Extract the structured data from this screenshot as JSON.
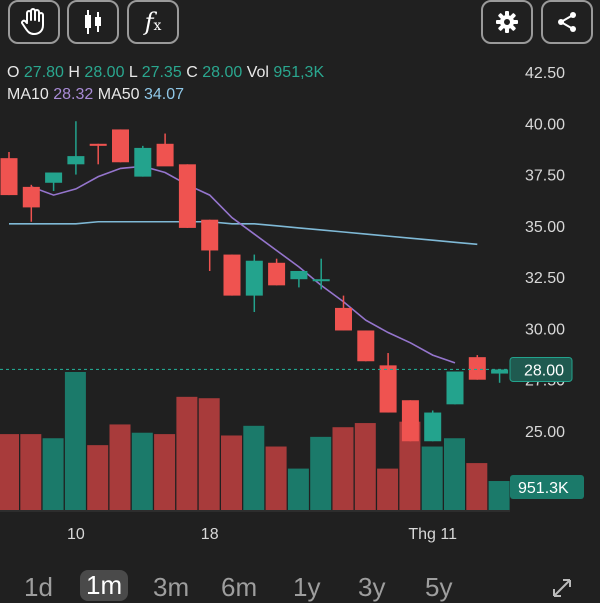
{
  "toolbar": {
    "hand_icon": "hand-icon",
    "candles_icon": "candlestick-icon",
    "fx_label": "f",
    "fx_sub": "x",
    "settings_icon": "gear-icon",
    "share_icon": "share-icon"
  },
  "ohlc": {
    "o_label": "O",
    "o_value": "27.80",
    "h_label": "H",
    "h_value": "28.00",
    "l_label": "L",
    "l_value": "27.35",
    "c_label": "C",
    "c_value": "28.00",
    "vol_label": "Vol",
    "vol_value": "951,3K",
    "ma10_label": "MA10",
    "ma10_value": "28.32",
    "ma50_label": "MA50",
    "ma50_value": "34.07"
  },
  "colors": {
    "up": "#23a38d",
    "down": "#ef5350",
    "ma10": "#9575cd",
    "ma50": "#7fb9d6",
    "vol_up": "#1b7a6a",
    "vol_down": "#a83b3b"
  },
  "chart_data": {
    "type": "candlestick",
    "y_ticks": [
      "42.50",
      "40.00",
      "37.50",
      "35.00",
      "32.50",
      "30.00",
      "27.50",
      "25.00"
    ],
    "y_tick_values": [
      42.5,
      40,
      37.5,
      35,
      32.5,
      30,
      27.5,
      25
    ],
    "ylim": [
      23,
      43
    ],
    "x_ticks": [
      {
        "label": "10",
        "index": 3
      },
      {
        "label": "18",
        "index": 9
      },
      {
        "label": "Thg 11",
        "index": 19
      }
    ],
    "candles": [
      {
        "o": 38.3,
        "h": 38.6,
        "l": 36.5,
        "c": 36.5
      },
      {
        "o": 36.9,
        "h": 37.0,
        "l": 35.2,
        "c": 35.9
      },
      {
        "o": 37.1,
        "h": 37.5,
        "l": 36.7,
        "c": 37.6
      },
      {
        "o": 38.0,
        "h": 40.1,
        "l": 37.5,
        "c": 38.4
      },
      {
        "o": 39.0,
        "h": 39.0,
        "l": 38.0,
        "c": 38.9
      },
      {
        "o": 39.7,
        "h": 39.7,
        "l": 38.1,
        "c": 38.1
      },
      {
        "o": 37.4,
        "h": 38.9,
        "l": 37.4,
        "c": 38.8
      },
      {
        "o": 39.0,
        "h": 39.5,
        "l": 38.0,
        "c": 37.9
      },
      {
        "o": 38.0,
        "h": 38.0,
        "l": 34.9,
        "c": 34.9
      },
      {
        "o": 35.3,
        "h": 35.3,
        "l": 32.8,
        "c": 33.8
      },
      {
        "o": 33.6,
        "h": 33.6,
        "l": 31.6,
        "c": 31.6
      },
      {
        "o": 31.6,
        "h": 33.6,
        "l": 30.8,
        "c": 33.3
      },
      {
        "o": 33.2,
        "h": 33.4,
        "l": 32.1,
        "c": 32.1
      },
      {
        "o": 32.4,
        "h": 32.8,
        "l": 32.0,
        "c": 32.8
      },
      {
        "o": 32.3,
        "h": 33.4,
        "l": 31.9,
        "c": 32.4
      },
      {
        "o": 31.0,
        "h": 31.6,
        "l": 29.9,
        "c": 29.9
      },
      {
        "o": 29.9,
        "h": 29.9,
        "l": 28.4,
        "c": 28.4
      },
      {
        "o": 28.2,
        "h": 28.8,
        "l": 25.9,
        "c": 25.9
      },
      {
        "o": 26.5,
        "h": 26.5,
        "l": 24.5,
        "c": 24.5
      },
      {
        "o": 24.5,
        "h": 26.0,
        "l": 24.5,
        "c": 25.9
      },
      {
        "o": 26.3,
        "h": 27.9,
        "l": 26.3,
        "c": 27.9
      },
      {
        "o": 28.6,
        "h": 28.7,
        "l": 27.5,
        "c": 27.5
      },
      {
        "o": 27.8,
        "h": 28.0,
        "l": 27.35,
        "c": 28.0
      }
    ],
    "ma10": [
      36.9,
      36.5,
      36.8,
      37.4,
      37.8,
      37.9,
      37.6,
      37.0,
      36.5,
      35.4,
      34.6,
      33.8,
      33.0,
      32.1,
      31.3,
      30.4,
      29.8,
      29.3,
      28.7,
      28.32
    ],
    "ma10_start_index": 1,
    "ma50": [
      35.1,
      35.1,
      35.1,
      35.1,
      35.2,
      35.2,
      35.2,
      35.2,
      35.2,
      35.2,
      35.1,
      35.1,
      35.0,
      34.9,
      34.8,
      34.7,
      34.6,
      34.5,
      34.4,
      34.3,
      34.2,
      34.1
    ],
    "ma50_start_index": 0,
    "volume": [
      0.55,
      0.55,
      0.52,
      1.0,
      0.47,
      0.62,
      0.56,
      0.55,
      0.82,
      0.81,
      0.54,
      0.61,
      0.46,
      0.3,
      0.53,
      0.6,
      0.63,
      0.3,
      0.64,
      0.46,
      0.52,
      0.34,
      0.21
    ],
    "last_price_label": "28.00",
    "last_price_value": 28.0,
    "last_volume_label": "951.3K"
  },
  "ranges": [
    "1d",
    "1m",
    "3m",
    "6m",
    "1y",
    "3y",
    "5y"
  ],
  "active_range": "1m"
}
